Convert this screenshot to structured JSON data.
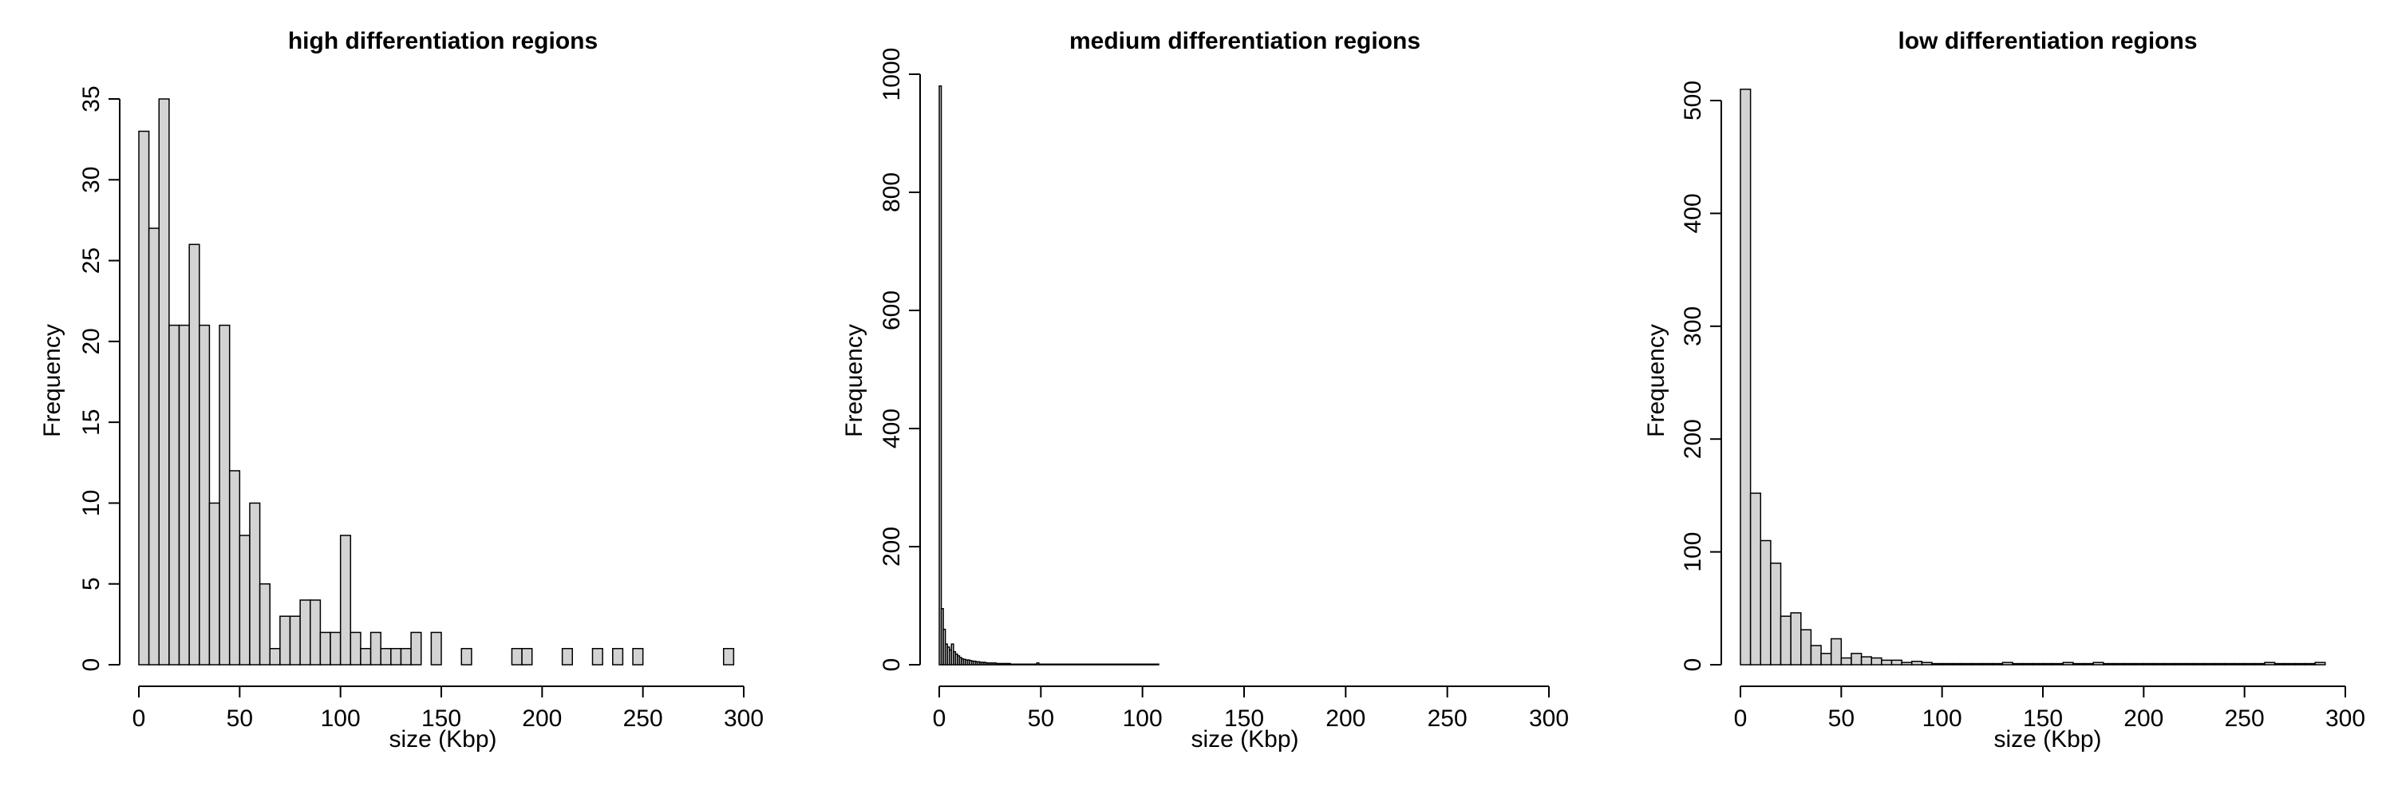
{
  "chart_data": [
    {
      "type": "bar",
      "title": "high differentiation regions",
      "xlabel": "size (Kbp)",
      "ylabel": "Frequency",
      "xlim": [
        0,
        300
      ],
      "ylim": [
        0,
        35
      ],
      "xticks": [
        0,
        50,
        100,
        150,
        200,
        250,
        300
      ],
      "yticks": [
        0,
        5,
        10,
        15,
        20,
        25,
        30,
        35
      ],
      "bin_width": 5,
      "bin_start": 0,
      "values": [
        33,
        27,
        35,
        21,
        21,
        26,
        21,
        10,
        21,
        12,
        8,
        10,
        5,
        1,
        3,
        3,
        4,
        4,
        2,
        2,
        8,
        2,
        1,
        2,
        1,
        1,
        1,
        2,
        0,
        2,
        0,
        0,
        1,
        0,
        0,
        0,
        0,
        1,
        1,
        0,
        0,
        0,
        1,
        0,
        0,
        1,
        0,
        1,
        0,
        1,
        0,
        0,
        0,
        0,
        0,
        0,
        0,
        0,
        1
      ],
      "grid": false,
      "legend": "none"
    },
    {
      "type": "bar",
      "title": "medium differentiation regions",
      "xlabel": "size (Kbp)",
      "ylabel": "Frequency",
      "xlim": [
        0,
        300
      ],
      "ylim": [
        0,
        1000
      ],
      "xticks": [
        0,
        50,
        100,
        150,
        200,
        250,
        300
      ],
      "yticks": [
        0,
        200,
        400,
        600,
        800,
        1000
      ],
      "bin_width": 1,
      "bin_start": 0,
      "values": [
        980,
        95,
        60,
        35,
        30,
        25,
        35,
        22,
        18,
        15,
        12,
        10,
        9,
        8,
        8,
        7,
        6,
        6,
        5,
        5,
        4,
        4,
        4,
        3,
        3,
        3,
        3,
        3,
        2,
        2,
        2,
        2,
        2,
        2,
        2,
        1,
        1,
        1,
        1,
        1,
        1,
        1,
        1,
        1,
        1,
        1,
        1,
        1,
        3,
        1,
        1,
        1,
        1,
        1,
        1,
        1,
        1,
        1,
        1,
        1,
        1,
        1,
        1,
        1,
        1,
        1,
        1,
        1,
        1,
        1,
        1,
        1,
        1,
        1,
        1,
        1,
        1,
        1,
        1,
        1,
        1,
        1,
        1,
        1,
        1,
        1,
        1,
        1,
        1,
        1,
        1,
        1,
        1,
        1,
        1,
        1,
        1,
        1,
        1,
        1,
        1,
        1,
        1,
        1,
        1,
        1,
        1,
        1
      ],
      "grid": false,
      "legend": "none"
    },
    {
      "type": "bar",
      "title": "low differentiation regions",
      "xlabel": "size (Kbp)",
      "ylabel": "Frequency",
      "xlim": [
        0,
        300
      ],
      "ylim": [
        0,
        500
      ],
      "xticks": [
        0,
        50,
        100,
        150,
        200,
        250,
        300
      ],
      "yticks": [
        0,
        100,
        200,
        300,
        400,
        500
      ],
      "bin_width": 5,
      "bin_start": 0,
      "values": [
        510,
        152,
        110,
        90,
        43,
        46,
        31,
        17,
        10,
        23,
        6,
        10,
        7,
        6,
        4,
        4,
        2,
        3,
        2,
        1,
        1,
        1,
        1,
        1,
        1,
        1,
        2,
        1,
        1,
        1,
        1,
        1,
        2,
        1,
        1,
        2,
        1,
        1,
        1,
        1,
        1,
        1,
        1,
        1,
        1,
        1,
        1,
        1,
        1,
        1,
        1,
        1,
        2,
        1,
        1,
        1,
        1,
        2
      ],
      "grid": false,
      "legend": "none"
    }
  ]
}
